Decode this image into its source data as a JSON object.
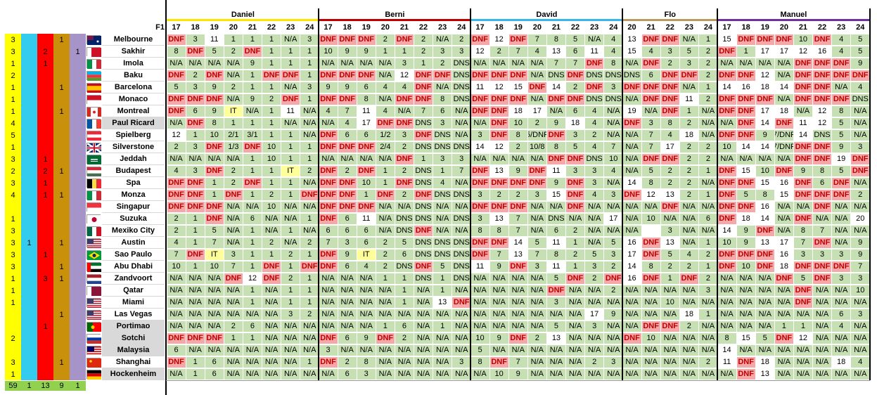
{
  "corner_label": "F1",
  "colors": {
    "green": "#c6e0b4",
    "red": "#f4a9a8",
    "yellow": "#ffff99",
    "white": "#ffffff",
    "na": "#c6e0b4",
    "dnf_text": "#c00000"
  },
  "side_columns": [
    {
      "name": "yellow",
      "color": "#ffff00"
    },
    {
      "name": "cyan",
      "color": "#33ccee"
    },
    {
      "name": "red",
      "color": "#ff0000"
    },
    {
      "name": "gold",
      "color": "#c8900b"
    },
    {
      "name": "purple",
      "color": "#a694c8"
    }
  ],
  "side_values": [
    [
      "3",
      "",
      "",
      "1",
      ""
    ],
    [
      "3",
      "",
      "2",
      "",
      "1"
    ],
    [
      "1",
      "",
      "1",
      "",
      ""
    ],
    [
      "2",
      "",
      "",
      "",
      ""
    ],
    [
      "1",
      "",
      "",
      "1",
      ""
    ],
    [
      "1",
      "",
      "",
      "",
      ""
    ],
    [
      "1",
      "",
      "",
      "1",
      ""
    ],
    [
      "4",
      "",
      "",
      "",
      ""
    ],
    [
      "5",
      "",
      "",
      "",
      ""
    ],
    [
      "1",
      "",
      "",
      "",
      ""
    ],
    [
      "3",
      "",
      "1",
      "",
      ""
    ],
    [
      "2",
      "",
      "2",
      "1",
      ""
    ],
    [
      "3",
      "",
      "1",
      "",
      ""
    ],
    [
      "4",
      "",
      "1",
      "1",
      ""
    ],
    [
      "",
      "",
      "",
      "",
      ""
    ],
    [
      "1",
      "",
      "",
      "",
      ""
    ],
    [
      "3",
      "",
      "",
      "",
      ""
    ],
    [
      "3",
      "1",
      "",
      "1",
      ""
    ],
    [
      "3",
      "",
      "1",
      "",
      ""
    ],
    [
      "3",
      "",
      "",
      "1",
      ""
    ],
    [
      "1",
      "",
      "3",
      "1",
      ""
    ],
    [
      "1",
      "",
      "",
      "",
      ""
    ],
    [
      "1",
      "",
      "",
      "",
      ""
    ],
    [
      "",
      "",
      "",
      "1",
      ""
    ],
    [
      "",
      "",
      "1",
      "",
      ""
    ],
    [
      "2",
      "",
      "",
      "",
      ""
    ],
    [
      "",
      "",
      "",
      "",
      ""
    ],
    [
      "3",
      "",
      "",
      "1",
      ""
    ],
    [
      "1",
      "",
      "",
      "",
      ""
    ]
  ],
  "side_totals": [
    "59",
    "1",
    "13",
    "9",
    "1"
  ],
  "players": [
    {
      "name": "Daniel",
      "color": "#ffe600",
      "years": [
        "17",
        "18",
        "19",
        "20",
        "21",
        "22",
        "23",
        "24"
      ]
    },
    {
      "name": "Berni",
      "color": "#c00000",
      "years": [
        "17",
        "18",
        "19",
        "20",
        "21",
        "22",
        "23",
        "24"
      ]
    },
    {
      "name": "David",
      "color": "#38b8e8",
      "years": [
        "17",
        "18",
        "19",
        "20",
        "21",
        "22",
        "23",
        "24"
      ]
    },
    {
      "name": "Flo",
      "color": "#b89a60",
      "years": [
        "20",
        "21",
        "22",
        "23",
        "24"
      ]
    },
    {
      "name": "Manuel",
      "color": "#7030a0",
      "years": [
        "17",
        "18",
        "19",
        "20",
        "21",
        "22",
        "23",
        "24"
      ]
    }
  ],
  "tracks": [
    {
      "name": "Melbourne",
      "flag": "au",
      "gray": false
    },
    {
      "name": "Sakhir",
      "flag": "bh",
      "gray": false
    },
    {
      "name": "Imola",
      "flag": "it",
      "gray": false
    },
    {
      "name": "Baku",
      "flag": "az",
      "gray": false
    },
    {
      "name": "Barcelona",
      "flag": "es",
      "gray": false
    },
    {
      "name": "Monaco",
      "flag": "mc",
      "gray": false
    },
    {
      "name": "Montreal",
      "flag": "ca",
      "gray": false
    },
    {
      "name": "Paul Ricard",
      "flag": "fr",
      "gray": true
    },
    {
      "name": "Spielberg",
      "flag": "at",
      "gray": false
    },
    {
      "name": "Silverstone",
      "flag": "gb",
      "gray": false
    },
    {
      "name": "Jeddah",
      "flag": "sa",
      "gray": false
    },
    {
      "name": "Budapest",
      "flag": "hu",
      "gray": false
    },
    {
      "name": "Spa",
      "flag": "be",
      "gray": false
    },
    {
      "name": "Monza",
      "flag": "it",
      "gray": false
    },
    {
      "name": "Singapur",
      "flag": "sg",
      "gray": false
    },
    {
      "name": "Suzuka",
      "flag": "jp",
      "gray": false
    },
    {
      "name": "Mexiko City",
      "flag": "mx",
      "gray": false
    },
    {
      "name": "Austin",
      "flag": "us",
      "gray": false
    },
    {
      "name": "Sao Paulo",
      "flag": "br",
      "gray": false
    },
    {
      "name": "Abu Dhabi",
      "flag": "ae",
      "gray": false
    },
    {
      "name": "Zandvoort",
      "flag": "nl",
      "gray": false
    },
    {
      "name": "Qatar",
      "flag": "qa",
      "gray": false
    },
    {
      "name": "Miami",
      "flag": "us",
      "gray": false
    },
    {
      "name": "Las Vegas",
      "flag": "us",
      "gray": false
    },
    {
      "name": "Portimao",
      "flag": "pt",
      "gray": true
    },
    {
      "name": "Sotchi",
      "flag": "ru",
      "gray": true
    },
    {
      "name": "Malaysia",
      "flag": "my",
      "gray": true
    },
    {
      "name": "Shanghai",
      "flag": "cn",
      "gray": false
    },
    {
      "name": "Hockenheim",
      "flag": "de",
      "gray": true
    }
  ],
  "results": [
    [
      "DNF 3 11 1 1 1 N/A 3",
      "DNF DNF DNF 2 DNF 2 N/A 2",
      "DNF 12 DNF 7 8 5 N/A 4",
      "13 DNF DNF N/A 1",
      "15 DNF DNF DNF 10 DNF 4 5"
    ],
    [
      "8 DNF 5 2 DNF 1 1 1",
      "10 9 9 1 1 2 3 3",
      "12 2 7 4 13 6 11 4",
      "15 4 3 5 2",
      "DNF 1 17 17 12 16 4 5"
    ],
    [
      "N/A N/A N/A N/A 9 1 1 1",
      "N/A N/A N/A N/A 3 1 2 DNS",
      "N/A N/A N/A N/A 7 7 DNF 8",
      "N/A DNF 2 3 2",
      "N/A N/A N/A N/A DNF DNF DNF 9"
    ],
    [
      "DNF 2 DNF N/A 1 DNF DNF 1",
      "DNF DNF DNF N/A 12 DNF DNF DNS",
      "DNF DNF DNF N/A DNS DNF DNS DNS",
      "DNS 6 DNF DNF 2",
      "DNF DNF 12 N/A DNF DNF DNF DNF"
    ],
    [
      "5 3 9 2 1 1 N/A 3",
      "9 9 6 4 4 DNF N/A DNS",
      "11 12 15 DNF 14 2 DNF 3",
      "DNF DNF DNF N/A 1",
      "14 16 18 14 DNF DNF N/A 4"
    ],
    [
      "DNF DNF DNF N/A 9 2 DNF 1",
      "DNF DNF 8 N/A DNF DNF 8 DNS",
      "DNF DNF DNF N/A DNF DNF DNS DNS",
      "N/A DNF DNF 11 2",
      "DNF DNF DNF N/A DNF DNF DNF DNS"
    ],
    [
      "DNF 6 9 IT N/A 1 11 N/A",
      "4 7 11 4 N/A 7 6 N/A",
      "DNF DNF 18 17 N/A 6 4 N/A",
      "19 N/A DNF 1 N/A",
      "DNF DNF 17 18 N/A 12 8 N/A"
    ],
    [
      "N/A DNF 8 1 1 1 N/A N/A",
      "N/A 4 17 DNF DNF DNS 3 N/A",
      "N/A DNF 10 2 9 18 4 N/A",
      "DNF 3 8 2 N/A",
      "N/A DNF 14 DNF 11 12 5 N/A"
    ],
    [
      "12 1 10 2/1 3/1 1 1 N/A",
      "DNF 6 6 1/2 3 DNF DNS N/A",
      "3 DNF 8 5/DNF DNF 3 2 N/A",
      "N/A 7 4 18 N/A",
      "DNF DNF 9 7/DNF 14 DNS 5 N/A"
    ],
    [
      "2 3 DNF 1/3 DNF 10 1 1",
      "DNF DNF DNF 2/4 2 DNS DNS DNS",
      "14 12 2 10/8 8 5 4 7",
      "N/A 7 17 2 2",
      "10 14 14 7/DNF DNF DNF 9 3"
    ],
    [
      "N/A N/A N/A N/A 1 10 1 1",
      "N/A N/A N/A N/A DNF 1 3 3",
      "N/A N/A N/A N/A DNF DNF DNS 10",
      "N/A DNF DNF 2 2",
      "N/A N/A N/A N/A DNF DNF 19 DNF"
    ],
    [
      "4 3 DNF 2 1 1 IT 2",
      "DNF 2 DNF 1 2 DNS 1 7",
      "DNF 13 9 DNF 11 3 3 4",
      "N/A 5 2 2 1",
      "DNF 15 10 DNF 9 8 5 DNF"
    ],
    [
      "DNF DNF 1 2 DNF 1 1 N/A",
      "DNF DNF 10 1 DNF DNS 4 N/A",
      "DNF DNF DNF DNF 9 DNF 3 N/A",
      "14 8 2 2 N/A",
      "DNF DNF 15 16 DNF 6 DNF N/A"
    ],
    [
      "DNF DNF 1 DNF 1 2 1 DNF",
      "DNF DNF 1 DNF 2 DNF DNS DNS",
      "3 2 2 3 15 DNF 4 3",
      "DNF 12 13 2 1",
      "DNF 5 8 15 DNF DNF DNF 2"
    ],
    [
      "DNF DNF DNF N/A N/A 10 N/A N/A",
      "DNF DNF DNF N/A N/A DNS N/A N/A",
      "DNF DNF DNF N/A N/A DNF N/A N/A",
      "N/A N/A DNF N/A N/A",
      "DNF DNF 16 N/A N/A DNF N/A N/A"
    ],
    [
      "2 1 DNF N/A 6 N/A N/A 1",
      "DNF 6 11 N/A DNS DNS N/A DNS",
      "3 13 7 N/A DNS N/A N/A 17",
      "N/A 10 N/A N/A 6",
      "DNF 18 14 N/A DNF N/A N/A 20"
    ],
    [
      "2 1 5 N/A 1 N/A 1 N/A",
      "6 6 6 N/A DNS DNF N/A N/A",
      "8 8 7 N/A 6 2 N/A N/A",
      "N/A  3 N/A N/A",
      "14 9 DNF N/A 8 7 N/A N/A"
    ],
    [
      "4 1 7 N/A 1 2 N/A 2",
      "7 3 6 2 5 DNS DNS DNS",
      "DNF DNF 14 5 11 1 N/A 5",
      "16 DNF 13 N/A 1",
      "10 9 13 17 7 DNF N/A 9"
    ],
    [
      "7 DNF IT 3 1 1 2 1",
      "DNF 9 IT 2 6 DNS DNS DNS",
      "DNF 7 13 7 8 2 5 3",
      "17 DNF 5 4 2",
      "DNF DNF DNF 16 3 3 3 9"
    ],
    [
      "10 1 10 7 1 DNF 1 DNF",
      "DNF 6 4 2 DNS DNF 5 DNS",
      "11 9 DNF 3 11 1 3 2",
      "14 8 2 2 1",
      "DNF 10 DNF 18 DNF DNF DNF 7"
    ],
    [
      "N/A N/A N/A DNF 12 DNF 2 1",
      "N/A N/A N/A 1 1 DNS 1 DNS",
      "N/A N/A N/A N/A 5 DNF 2 DNF",
      "16 DNF 1 DNF 2",
      "N/A N/A N/A DNF 5 DNF 3 3"
    ],
    [
      "N/A N/A N/A N/A 1 N/A 1 1",
      "N/A N/A N/A N/A 1 N/A 1 N/A",
      "N/A N/A N/A N/A DNF N/A N/A 2",
      "N/A N/A N/A N/A 3",
      "N/A N/A N/A N/A DNF N/A N/A 10"
    ],
    [
      "N/A N/A N/A N/A 1 N/A 1 1",
      "N/A N/A N/A N/A 1 N/A 13 DNF",
      "N/A N/A N/A N/A 3 N/A N/A N/A",
      "N/A N/A 10 N/A N/A",
      "N/A N/A N/A N/A DNF N/A N/A N/A"
    ],
    [
      "N/A N/A N/A N/A N/A N/A 3 2",
      "N/A N/A N/A N/A N/A N/A N/A N/A",
      "N/A N/A N/A N/A N/A N/A 17 9",
      "N/A N/A N/A 18 1",
      "N/A N/A N/A N/A N/A N/A 6 3"
    ],
    [
      "N/A N/A N/A 2 6 N/A N/A N/A",
      "N/A N/A N/A 1 6 N/A 1 N/A",
      "N/A N/A N/A N/A 5 N/A 3 N/A",
      "N/A DNF DNF 2 N/A",
      "N/A N/A N/A 1 1 N/A 4 N/A"
    ],
    [
      "DNF DNF DNF 1 1 N/A N/A N/A",
      "DNF 6 9 DNF 2 N/A N/A N/A",
      "10 9 DNF 2 13 N/A N/A N/A",
      "DNF 10 N/A N/A N/A",
      "8 15 5 DNF 12 N/A N/A N/A"
    ],
    [
      "6 N/A N/A N/A N/A N/A N/A N/A",
      "3 N/A N/A N/A N/A N/A N/A N/A",
      "5 N/A N/A N/A N/A N/A N/A N/A",
      "N/A N/A N/A N/A N/A",
      "14 N/A N/A N/A N/A N/A N/A N/A"
    ],
    [
      "DNF 1 6 N/A N/A N/A N/A 1",
      "DNF 2 8 N/A N/A N/A N/A 3",
      "8 DNF 7 N/A N/A N/A 2 3",
      "N/A N/A N/A N/A 2",
      "11 DNF 18 N/A N/A N/A 18 4"
    ],
    [
      "N/A 1 6 N/A N/A N/A N/A N/A",
      "N/A 6 3 N/A N/A N/A N/A N/A",
      "N/A 10 9 N/A N/A N/A N/A N/A",
      "N/A N/A N/A N/A N/A",
      "N/A DNF 13 N/A N/A N/A N/A N/A"
    ]
  ]
}
